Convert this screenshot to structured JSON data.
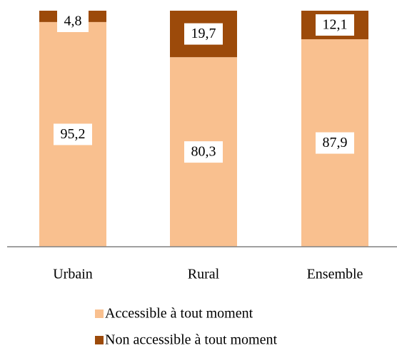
{
  "chart_data": {
    "type": "stacked_bar",
    "categories": [
      "Urbain",
      "Rural",
      "Ensemble"
    ],
    "series": [
      {
        "name": "Accessible à tout moment",
        "color": "#f9c08f",
        "values": [
          95.2,
          80.3,
          87.9
        ],
        "value_labels": [
          "95,2",
          "80,3",
          "87,9"
        ]
      },
      {
        "name": "Non accessible à tout moment",
        "color": "#9c4a0a",
        "values": [
          4.8,
          19.7,
          12.1
        ],
        "value_labels": [
          "4,8",
          "19,7",
          "12,1"
        ]
      }
    ],
    "ylim": [
      0,
      100
    ]
  }
}
